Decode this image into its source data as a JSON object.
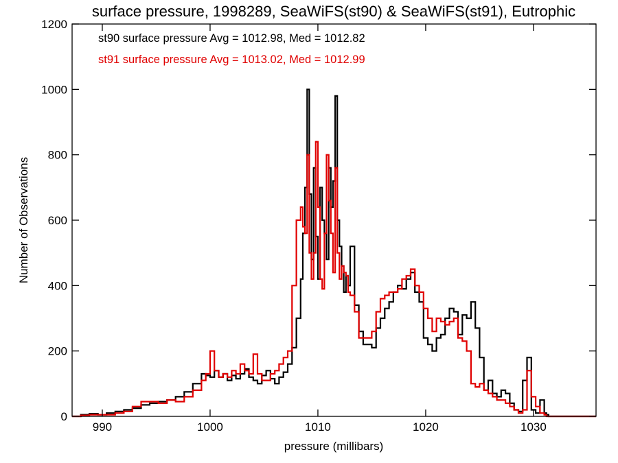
{
  "chart_data": {
    "type": "line",
    "title": "surface pressure, 1998289, SeaWiFS(st90) & SeaWiFS(st91), Eutrophic",
    "xlabel": "pressure (millibars)",
    "ylabel": "Number of Observations",
    "xlim": [
      987.2,
      1035.8
    ],
    "ylim": [
      0,
      1200
    ],
    "xticks": [
      990,
      1000,
      1010,
      1020,
      1030
    ],
    "yticks": [
      0,
      200,
      400,
      600,
      800,
      1000,
      1200
    ],
    "grid": false,
    "legend_position": "top-left",
    "series": [
      {
        "name": "st90",
        "color": "#000000",
        "legend_text": "st90 surface pressure Avg = 1012.98, Med = 1012.82",
        "x": [
          987.2,
          988.0,
          988.8,
          989.6,
          990.4,
          991.2,
          992.0,
          992.8,
          993.6,
          994.4,
          995.2,
          996.0,
          996.8,
          997.6,
          998.4,
          999.2,
          999.6,
          1000.0,
          1000.4,
          1000.8,
          1001.2,
          1001.6,
          1002.0,
          1002.4,
          1002.8,
          1003.2,
          1003.6,
          1004.0,
          1004.4,
          1004.8,
          1005.2,
          1005.6,
          1006.0,
          1006.4,
          1006.8,
          1007.2,
          1007.6,
          1008.0,
          1008.4,
          1008.6,
          1008.8,
          1009.0,
          1009.2,
          1009.4,
          1009.6,
          1009.8,
          1010.0,
          1010.2,
          1010.4,
          1010.6,
          1010.8,
          1011.0,
          1011.2,
          1011.4,
          1011.6,
          1011.8,
          1012.0,
          1012.2,
          1012.4,
          1012.6,
          1012.8,
          1013.0,
          1013.4,
          1013.8,
          1014.2,
          1014.6,
          1015.0,
          1015.4,
          1015.8,
          1016.2,
          1016.6,
          1017.0,
          1017.4,
          1017.8,
          1018.2,
          1018.6,
          1019.0,
          1019.4,
          1019.8,
          1020.2,
          1020.6,
          1021.0,
          1021.4,
          1021.8,
          1022.2,
          1022.6,
          1023.0,
          1023.4,
          1023.8,
          1024.2,
          1024.6,
          1025.0,
          1025.4,
          1025.8,
          1026.2,
          1026.6,
          1027.0,
          1027.4,
          1027.8,
          1028.2,
          1028.6,
          1029.0,
          1029.4,
          1029.8,
          1030.2,
          1030.6,
          1031.0,
          1031.2,
          1031.4,
          1031.8,
          1032.2,
          1032.6,
          1033.0,
          1033.4,
          1034.0,
          1035.0,
          1035.8
        ],
        "y": [
          0,
          5,
          8,
          5,
          10,
          15,
          20,
          25,
          35,
          40,
          45,
          50,
          60,
          75,
          100,
          130,
          125,
          120,
          140,
          120,
          130,
          110,
          125,
          115,
          130,
          145,
          120,
          110,
          100,
          125,
          140,
          115,
          100,
          120,
          135,
          160,
          210,
          300,
          420,
          560,
          700,
          1000,
          680,
          480,
          760,
          550,
          420,
          700,
          600,
          560,
          480,
          760,
          640,
          720,
          980,
          600,
          520,
          460,
          380,
          430,
          400,
          520,
          340,
          260,
          220,
          220,
          210,
          270,
          300,
          330,
          350,
          380,
          400,
          390,
          420,
          440,
          380,
          350,
          240,
          220,
          200,
          240,
          250,
          300,
          330,
          320,
          250,
          310,
          300,
          350,
          270,
          180,
          80,
          110,
          70,
          60,
          80,
          70,
          40,
          20,
          15,
          110,
          180,
          20,
          10,
          50,
          10,
          5,
          0,
          0,
          0,
          0,
          0,
          0,
          0,
          0,
          0
        ]
      },
      {
        "name": "st91",
        "color": "#e00000",
        "legend_text": "st91 surface pressure Avg = 1013.02, Med = 1012.99",
        "x": [
          987.2,
          988.0,
          988.8,
          989.6,
          990.4,
          991.2,
          992.0,
          992.8,
          993.6,
          994.4,
          995.2,
          996.0,
          996.8,
          997.6,
          998.4,
          999.2,
          999.6,
          1000.0,
          1000.4,
          1000.8,
          1001.2,
          1001.6,
          1002.0,
          1002.4,
          1002.8,
          1003.2,
          1003.6,
          1004.0,
          1004.4,
          1004.8,
          1005.2,
          1005.6,
          1006.0,
          1006.4,
          1006.8,
          1007.2,
          1007.6,
          1008.0,
          1008.4,
          1008.6,
          1008.8,
          1009.0,
          1009.2,
          1009.4,
          1009.6,
          1009.8,
          1010.0,
          1010.2,
          1010.4,
          1010.6,
          1010.8,
          1011.0,
          1011.2,
          1011.4,
          1011.6,
          1011.8,
          1012.0,
          1012.2,
          1012.4,
          1012.6,
          1012.8,
          1013.0,
          1013.4,
          1013.8,
          1014.2,
          1014.6,
          1015.0,
          1015.4,
          1015.8,
          1016.2,
          1016.6,
          1017.0,
          1017.4,
          1017.8,
          1018.2,
          1018.6,
          1019.0,
          1019.4,
          1019.8,
          1020.2,
          1020.6,
          1021.0,
          1021.4,
          1021.8,
          1022.2,
          1022.6,
          1023.0,
          1023.4,
          1023.8,
          1024.2,
          1024.6,
          1025.0,
          1025.4,
          1025.8,
          1026.2,
          1026.6,
          1027.0,
          1027.4,
          1027.8,
          1028.2,
          1028.6,
          1029.0,
          1029.4,
          1029.8,
          1030.2,
          1030.6,
          1031.0,
          1031.2,
          1031.4,
          1031.8,
          1032.2,
          1032.6,
          1033.0,
          1033.4,
          1034.0,
          1035.0,
          1035.8
        ],
        "y": [
          0,
          3,
          5,
          5,
          5,
          10,
          15,
          30,
          45,
          45,
          40,
          50,
          45,
          60,
          80,
          110,
          130,
          200,
          140,
          120,
          130,
          120,
          140,
          130,
          160,
          140,
          130,
          190,
          130,
          110,
          110,
          130,
          140,
          160,
          180,
          200,
          400,
          600,
          640,
          580,
          560,
          800,
          500,
          420,
          500,
          840,
          640,
          420,
          390,
          560,
          800,
          660,
          560,
          440,
          760,
          500,
          420,
          460,
          440,
          430,
          380,
          370,
          320,
          240,
          240,
          240,
          260,
          320,
          360,
          370,
          380,
          380,
          390,
          420,
          430,
          450,
          400,
          380,
          330,
          300,
          260,
          300,
          290,
          280,
          290,
          300,
          240,
          230,
          200,
          100,
          90,
          100,
          80,
          70,
          60,
          50,
          50,
          40,
          30,
          20,
          10,
          20,
          140,
          60,
          30,
          10,
          5,
          0,
          0,
          0,
          0,
          0,
          0,
          0,
          0,
          0,
          0
        ]
      }
    ]
  }
}
